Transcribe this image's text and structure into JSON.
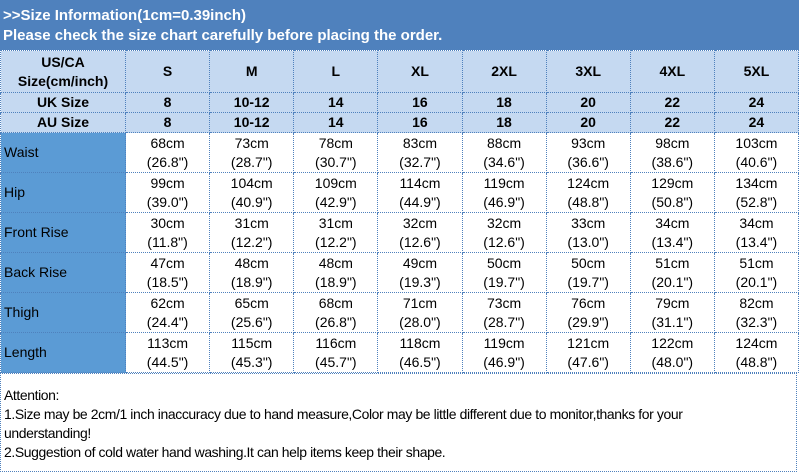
{
  "banner": {
    "line1": ">>Size Information(1cm=0.39inch)",
    "line2": "Please check the size chart carefully before placing the order."
  },
  "table": {
    "header_label": [
      "US/CA",
      "Size(cm/inch)"
    ],
    "us_sizes": [
      "S",
      "M",
      "L",
      "XL",
      "2XL",
      "3XL",
      "4XL",
      "5XL"
    ],
    "uk_label": "UK Size",
    "uk_sizes": [
      "8",
      "10-12",
      "14",
      "16",
      "18",
      "20",
      "22",
      "24"
    ],
    "au_label": "AU Size",
    "au_sizes": [
      "8",
      "10-12",
      "14",
      "16",
      "18",
      "20",
      "22",
      "24"
    ],
    "rows": [
      {
        "label": "Waist",
        "cm": [
          "68cm",
          "73cm",
          "78cm",
          "83cm",
          "88cm",
          "93cm",
          "98cm",
          "103cm"
        ],
        "inch": [
          "(26.8\")",
          "(28.7\")",
          "(30.7\")",
          "(32.7\")",
          "(34.6\")",
          "(36.6\")",
          "(38.6\")",
          "(40.6\")"
        ]
      },
      {
        "label": "Hip",
        "cm": [
          "99cm",
          "104cm",
          "109cm",
          "114cm",
          "119cm",
          "124cm",
          "129cm",
          "134cm"
        ],
        "inch": [
          "(39.0\")",
          "(40.9\")",
          "(42.9\")",
          "(44.9\")",
          "(46.9\")",
          "(48.8\")",
          "(50.8\")",
          "(52.8\")"
        ]
      },
      {
        "label": "Front Rise",
        "cm": [
          "30cm",
          "31cm",
          "31cm",
          "32cm",
          "32cm",
          "33cm",
          "34cm",
          "34cm"
        ],
        "inch": [
          "(11.8\")",
          "(12.2\")",
          "(12.2\")",
          "(12.6\")",
          "(12.6\")",
          "(13.0\")",
          "(13.4\")",
          "(13.4\")"
        ]
      },
      {
        "label": "Back Rise",
        "cm": [
          "47cm",
          "48cm",
          "48cm",
          "49cm",
          "50cm",
          "50cm",
          "51cm",
          "51cm"
        ],
        "inch": [
          "(18.5\")",
          "(18.9\")",
          "(18.9\")",
          "(19.3\")",
          "(19.7\")",
          "(19.7\")",
          "(20.1\")",
          "(20.1\")"
        ]
      },
      {
        "label": "Thigh",
        "cm": [
          "62cm",
          "65cm",
          "68cm",
          "71cm",
          "73cm",
          "76cm",
          "79cm",
          "82cm"
        ],
        "inch": [
          "(24.4\")",
          "(25.6\")",
          "(26.8\")",
          "(28.0\")",
          "(28.7\")",
          "(29.9\")",
          "(31.1\")",
          "(32.3\")"
        ]
      },
      {
        "label": "Length",
        "cm": [
          "113cm",
          "115cm",
          "116cm",
          "118cm",
          "119cm",
          "121cm",
          "122cm",
          "124cm"
        ],
        "inch": [
          "(44.5\")",
          "(45.3\")",
          "(45.7\")",
          "(46.5\")",
          "(46.9\")",
          "(47.6\")",
          "(48.0\")",
          "(48.8\")"
        ]
      }
    ]
  },
  "notes": {
    "title": "Attention:",
    "line1a": "1.Size may be 2cm/1 inch inaccuracy due to hand measure,Color may be little different due to monitor,thanks for your",
    "line1b": "understanding!",
    "line2": "2.Suggestion of cold water hand washing.It can help items keep their shape."
  },
  "colors": {
    "banner": "#4f81bd",
    "header": "#c5d9f1",
    "label_column": "#5b9bd5",
    "border": "#4f81bd"
  }
}
